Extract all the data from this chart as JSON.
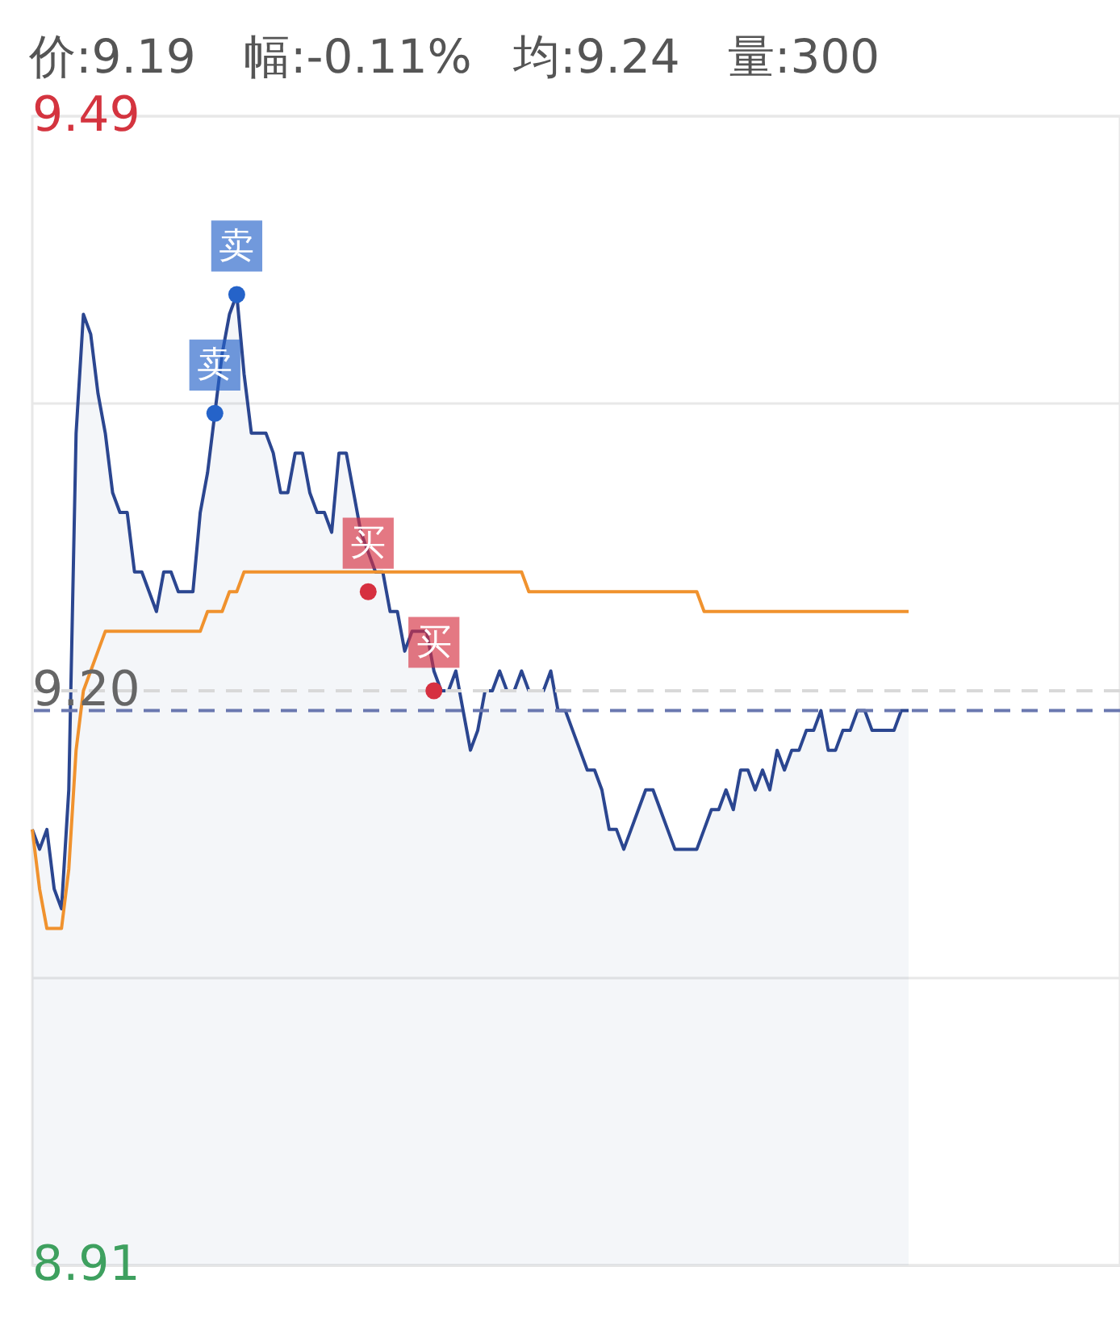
{
  "chart_data": {
    "type": "line",
    "annotations": [
      "价:9.19",
      "幅:-0.11%",
      "均:9.24",
      "量:300"
    ],
    "categories": [
      null,
      null,
      null,
      null,
      null,
      null,
      null,
      null,
      null,
      null,
      null,
      null,
      null,
      null,
      null,
      null,
      null,
      null,
      null,
      null,
      null,
      null,
      null,
      null,
      null,
      null,
      null,
      null,
      null,
      null,
      null,
      null,
      null,
      null,
      null,
      null,
      null,
      null,
      null,
      null,
      null,
      null,
      null,
      null,
      null,
      null,
      null,
      null,
      null,
      null,
      null,
      null,
      null,
      null,
      null,
      null,
      null,
      null,
      null,
      null,
      null,
      null,
      null,
      null,
      null,
      null,
      null,
      null,
      null,
      null,
      null,
      null,
      null,
      null,
      null,
      null,
      null,
      null,
      null,
      null,
      null,
      null,
      null,
      null,
      null,
      null,
      null,
      null,
      null,
      null,
      null,
      null,
      null,
      null,
      null,
      null,
      null,
      null,
      null,
      null,
      null,
      null,
      null,
      null,
      null,
      null,
      null,
      null,
      null,
      null,
      null,
      null,
      null,
      null,
      null,
      null,
      null,
      null,
      null,
      null,
      null
    ],
    "series": [
      {
        "type": "area",
        "color": "#2b4690",
        "values": [
          9.13,
          9.12,
          9.13,
          9.1,
          9.09,
          9.15,
          9.33,
          9.39,
          9.38,
          9.35,
          9.33,
          9.3,
          9.29,
          9.29,
          9.26,
          9.26,
          9.25,
          9.24,
          9.26,
          9.26,
          9.25,
          9.25,
          9.25,
          9.29,
          9.31,
          9.34,
          9.37,
          9.39,
          9.4,
          9.36,
          9.33,
          9.33,
          9.33,
          9.32,
          9.3,
          9.3,
          9.32,
          9.32,
          9.3,
          9.29,
          9.29,
          9.28,
          9.32,
          9.32,
          9.3,
          9.28,
          9.27,
          9.26,
          9.26,
          9.24,
          9.24,
          9.22,
          9.23,
          9.23,
          9.23,
          9.21,
          9.2,
          9.2,
          9.21,
          9.19,
          9.17,
          9.18,
          9.2,
          9.2,
          9.21,
          9.2,
          9.2,
          9.21,
          9.2,
          9.2,
          9.2,
          9.21,
          9.19,
          9.19,
          9.18,
          9.17,
          9.16,
          9.16,
          9.15,
          9.13,
          9.13,
          9.12,
          9.13,
          9.14,
          9.15,
          9.15,
          9.14,
          9.13,
          9.12,
          9.12,
          9.12,
          9.12,
          9.13,
          9.14,
          9.14,
          9.15,
          9.14,
          9.16,
          9.16,
          9.15,
          9.16,
          9.15,
          9.17,
          9.16,
          9.17,
          9.17,
          9.18,
          9.18,
          9.19,
          9.17,
          9.17,
          9.18,
          9.18,
          9.19,
          9.19,
          9.18,
          9.18,
          9.18,
          9.18,
          9.19,
          9.19
        ]
      },
      {
        "type": "line",
        "color": "#f0922e",
        "values": [
          9.13,
          9.1,
          9.08,
          9.08,
          9.08,
          9.11,
          9.17,
          9.2,
          9.21,
          9.22,
          9.23,
          9.23,
          9.23,
          9.23,
          9.23,
          9.23,
          9.23,
          9.23,
          9.23,
          9.23,
          9.23,
          9.23,
          9.23,
          9.23,
          9.24,
          9.24,
          9.24,
          9.25,
          9.25,
          9.26,
          9.26,
          9.26,
          9.26,
          9.26,
          9.26,
          9.26,
          9.26,
          9.26,
          9.26,
          9.26,
          9.26,
          9.26,
          9.26,
          9.26,
          9.26,
          9.26,
          9.26,
          9.26,
          9.26,
          9.26,
          9.26,
          9.26,
          9.26,
          9.26,
          9.26,
          9.26,
          9.26,
          9.26,
          9.26,
          9.26,
          9.26,
          9.26,
          9.26,
          9.26,
          9.26,
          9.26,
          9.26,
          9.26,
          9.25,
          9.25,
          9.25,
          9.25,
          9.25,
          9.25,
          9.25,
          9.25,
          9.25,
          9.25,
          9.25,
          9.25,
          9.25,
          9.25,
          9.25,
          9.25,
          9.25,
          9.25,
          9.25,
          9.25,
          9.25,
          9.25,
          9.25,
          9.25,
          9.24,
          9.24,
          9.24,
          9.24,
          9.24,
          9.24,
          9.24,
          9.24,
          9.24,
          9.24,
          9.24,
          9.24,
          9.24,
          9.24,
          9.24,
          9.24,
          9.24,
          9.24,
          9.24,
          9.24,
          9.24,
          9.24,
          9.24,
          9.24,
          9.24,
          9.24,
          9.24,
          9.24,
          9.24
        ]
      },
      {
        "type": "scatter",
        "color": "#2563c9",
        "values": [
          null,
          null,
          null,
          null,
          null,
          null,
          null,
          null,
          null,
          null,
          null,
          null,
          null,
          null,
          null,
          null,
          null,
          null,
          null,
          null,
          null,
          null,
          null,
          null,
          null,
          9.34,
          null,
          null,
          9.4,
          null,
          null,
          null,
          null,
          null,
          null,
          null,
          null,
          null,
          null,
          null,
          null,
          null,
          null,
          null,
          null,
          null,
          null,
          null,
          null,
          null,
          null,
          null,
          null,
          null,
          null,
          null,
          null,
          null,
          null,
          null,
          null,
          null,
          null,
          null,
          null,
          null,
          null,
          null,
          null,
          null,
          null,
          null,
          null,
          null,
          null,
          null,
          null,
          null,
          null,
          null,
          null,
          null,
          null,
          null,
          null,
          null,
          null,
          null,
          null,
          null,
          null,
          null,
          null,
          null,
          null,
          null,
          null,
          null,
          null,
          null,
          null,
          null,
          null,
          null,
          null,
          null,
          null,
          null,
          null,
          null,
          null,
          null,
          null,
          null,
          null,
          null,
          null,
          null,
          null,
          null,
          null
        ],
        "value_labels": [
          null,
          null,
          null,
          null,
          null,
          null,
          null,
          null,
          null,
          null,
          null,
          null,
          null,
          null,
          null,
          null,
          null,
          null,
          null,
          null,
          null,
          null,
          null,
          null,
          null,
          "卖",
          null,
          null,
          "卖",
          null,
          null,
          null,
          null,
          null,
          null,
          null,
          null,
          null,
          null,
          null,
          null,
          null,
          null,
          null,
          null,
          null,
          null,
          null,
          null,
          null,
          null,
          null,
          null,
          null,
          null,
          null,
          null,
          null,
          null,
          null,
          null,
          null,
          null,
          null,
          null,
          null,
          null,
          null,
          null,
          null,
          null,
          null,
          null,
          null,
          null,
          null,
          null,
          null,
          null,
          null,
          null,
          null,
          null,
          null,
          null,
          null,
          null,
          null,
          null,
          null,
          null,
          null,
          null,
          null,
          null,
          null,
          null,
          null,
          null,
          null,
          null,
          null,
          null,
          null,
          null,
          null,
          null,
          null,
          null,
          null,
          null,
          null,
          null,
          null,
          null,
          null,
          null,
          null,
          null,
          null,
          null
        ]
      },
      {
        "type": "scatter",
        "color": "#d63040",
        "values": [
          null,
          null,
          null,
          null,
          null,
          null,
          null,
          null,
          null,
          null,
          null,
          null,
          null,
          null,
          null,
          null,
          null,
          null,
          null,
          null,
          null,
          null,
          null,
          null,
          null,
          null,
          null,
          null,
          null,
          null,
          null,
          null,
          null,
          null,
          null,
          null,
          null,
          null,
          null,
          null,
          null,
          null,
          null,
          null,
          null,
          null,
          9.25,
          null,
          null,
          null,
          null,
          null,
          null,
          null,
          null,
          9.2,
          null,
          null,
          null,
          null,
          null,
          null,
          null,
          null,
          null,
          null,
          null,
          null,
          null,
          null,
          null,
          null,
          null,
          null,
          null,
          null,
          null,
          null,
          null,
          null,
          null,
          null,
          null,
          null,
          null,
          null,
          null,
          null,
          null,
          null,
          null,
          null,
          null,
          null,
          null,
          null,
          null,
          null,
          null,
          null,
          null,
          null,
          null,
          null,
          null,
          null,
          null,
          null,
          null,
          null,
          null,
          null,
          null,
          null,
          null,
          null,
          null,
          null,
          null,
          null,
          null
        ],
        "value_labels": [
          null,
          null,
          null,
          null,
          null,
          null,
          null,
          null,
          null,
          null,
          null,
          null,
          null,
          null,
          null,
          null,
          null,
          null,
          null,
          null,
          null,
          null,
          null,
          null,
          null,
          null,
          null,
          null,
          null,
          null,
          null,
          null,
          null,
          null,
          null,
          null,
          null,
          null,
          null,
          null,
          null,
          null,
          null,
          null,
          null,
          null,
          "买",
          null,
          null,
          null,
          null,
          null,
          null,
          null,
          null,
          "买",
          null,
          null,
          null,
          null,
          null,
          null,
          null,
          null,
          null,
          null,
          null,
          null,
          null,
          null,
          null,
          null,
          null,
          null,
          null,
          null,
          null,
          null,
          null,
          null,
          null,
          null,
          null,
          null,
          null,
          null,
          null,
          null,
          null,
          null,
          null,
          null,
          null,
          null,
          null,
          null,
          null,
          null,
          null,
          null,
          null,
          null,
          null,
          null,
          null,
          null,
          null,
          null,
          null,
          null,
          null,
          null,
          null,
          null,
          null,
          null,
          null,
          null,
          null,
          null,
          null
        ]
      }
    ],
    "ylim": [
      8.91,
      9.49
    ],
    "yticks": [
      9.49,
      {
        "value": 9.345,
        "label": null
      },
      {
        "value": 9.2,
        "label": "9.20"
      },
      {
        "value": 9.055,
        "label": null
      },
      8.91
    ],
    "grid": "y",
    "ref_lines": [
      {
        "axis": "y",
        "value": 9.2,
        "color": "#d9d9d9",
        "line_style": "dashed"
      },
      {
        "axis": "y",
        "value": 9.19,
        "color": "#6a78b0",
        "line_style": "dashed"
      }
    ]
  }
}
